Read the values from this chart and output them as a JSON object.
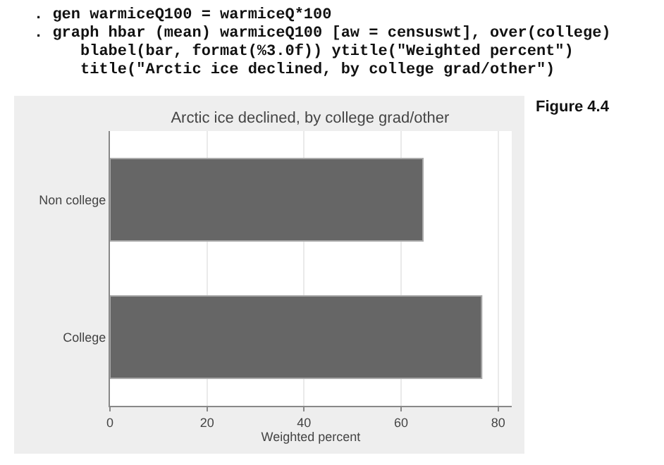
{
  "chart_data": {
    "type": "bar",
    "orientation": "horizontal",
    "title": "Arctic ice declined, by college grad/other",
    "xlabel": "Weighted percent",
    "categories": [
      "Non college",
      "College"
    ],
    "values": [
      64.5,
      76.6
    ],
    "color": "#666666",
    "xlim": [
      0,
      82.8
    ],
    "xticks": [
      0,
      20,
      40,
      60,
      80
    ],
    "grid": "x",
    "legend": false,
    "annotations": [
      ". gen warmiceQ100 = warmiceQ*100",
      ". graph hbar (mean) warmiceQ100 [aw = censuswt], over(college)",
      "     blabel(bar, format(%3.0f)) ytitle(\"Weighted percent\")",
      "     title(\"Arctic ice declined, by college grad/other\")",
      "Figure 4.4"
    ]
  }
}
